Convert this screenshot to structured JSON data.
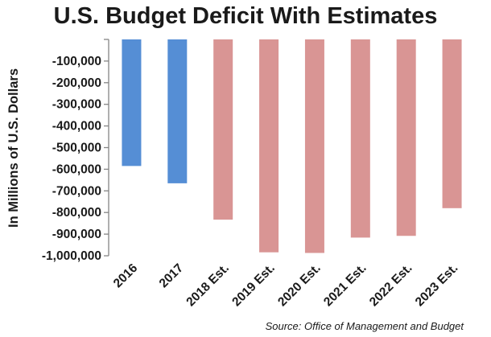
{
  "chart_data": {
    "type": "bar",
    "title": "U.S. Budget Deficit With Estimates",
    "ylabel": "In Millions of U.S. Dollars",
    "xlabel": "",
    "categories": [
      "2016",
      "2017",
      "2018 Est.",
      "2019 Est.",
      "2020 Est.",
      "2021 Est.",
      "2022 Est.",
      "2023 Est."
    ],
    "values": [
      -585000,
      -665000,
      -833000,
      -984000,
      -987000,
      -916000,
      -908000,
      -780000
    ],
    "ylim": [
      -1000000,
      0
    ],
    "yticks": [
      -100000,
      -200000,
      -300000,
      -400000,
      -500000,
      -600000,
      -700000,
      -800000,
      -900000,
      -1000000
    ],
    "ytick_labels": [
      "-100,000",
      "-200,000",
      "-300,000",
      "-400,000",
      "-500,000",
      "-600,000",
      "-700,000",
      "-800,000",
      "-900,000",
      "-1,000,000"
    ],
    "grid": false,
    "colors": {
      "actual": "#558ed5",
      "estimate": "#d99594",
      "axis": "#868686"
    },
    "bar_color_keys": [
      "actual",
      "actual",
      "estimate",
      "estimate",
      "estimate",
      "estimate",
      "estimate",
      "estimate"
    ]
  },
  "source": "Source: Office of Management and Budget"
}
